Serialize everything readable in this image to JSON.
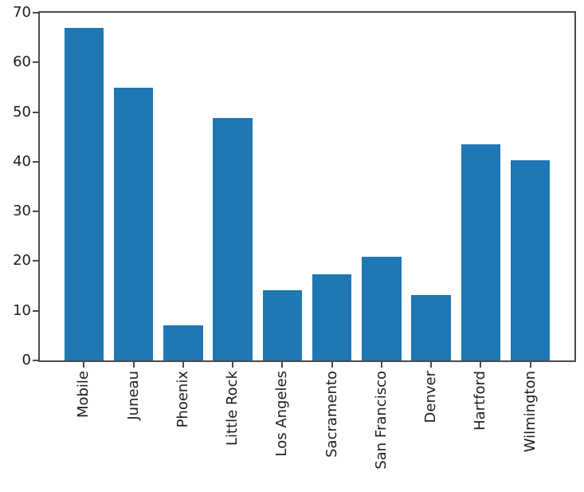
{
  "chart_data": {
    "type": "bar",
    "categories": [
      "Mobile",
      "Juneau",
      "Phoenix",
      "Little Rock",
      "Los Angeles",
      "Sacramento",
      "San Francisco",
      "Denver",
      "Hartford",
      "Wilmington"
    ],
    "values": [
      67.0,
      54.9,
      7.0,
      48.8,
      14.1,
      17.3,
      20.9,
      13.1,
      43.5,
      40.3
    ],
    "title": "",
    "xlabel": "",
    "ylabel": "",
    "ylim": [
      0,
      70
    ],
    "yticks": [
      0,
      10,
      20,
      30,
      40,
      50,
      60,
      70
    ],
    "xtick_rotation_deg": 90,
    "grid": false,
    "legend": null,
    "bar_color": "#1f77b4",
    "bar_width_fraction": 0.8,
    "x_margin_fraction": 0.05,
    "background_color": "#ffffff",
    "spine_color": "#4a4a4a",
    "text_color": "#1c1c1c"
  }
}
